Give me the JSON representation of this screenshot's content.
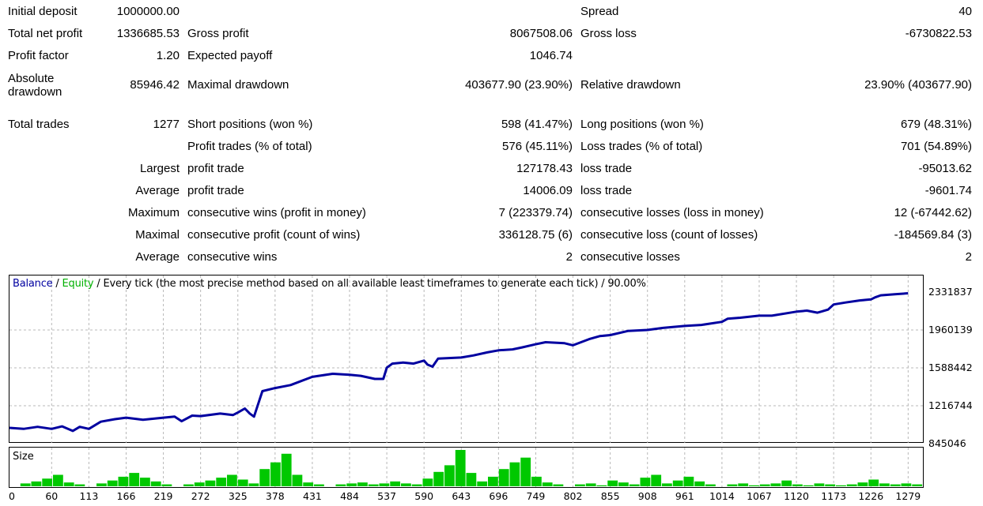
{
  "stats": {
    "initial_deposit_label": "Initial deposit",
    "initial_deposit": "1000000.00",
    "spread_label": "Spread",
    "spread": "40",
    "total_net_profit_label": "Total net profit",
    "total_net_profit": "1336685.53",
    "gross_profit_label": "Gross profit",
    "gross_profit": "8067508.06",
    "gross_loss_label": "Gross loss",
    "gross_loss": "-6730822.53",
    "profit_factor_label": "Profit factor",
    "profit_factor": "1.20",
    "expected_payoff_label": "Expected payoff",
    "expected_payoff": "1046.74",
    "absolute_drawdown_label": "Absolute drawdown",
    "absolute_drawdown": "85946.42",
    "maximal_drawdown_label": "Maximal drawdown",
    "maximal_drawdown": "403677.90 (23.90%)",
    "relative_drawdown_label": "Relative drawdown",
    "relative_drawdown": "23.90% (403677.90)",
    "total_trades_label": "Total trades",
    "total_trades": "1277",
    "short_positions_label": "Short positions (won %)",
    "short_positions": "598 (41.47%)",
    "long_positions_label": "Long positions (won %)",
    "long_positions": "679 (48.31%)",
    "profit_trades_label": "Profit trades (% of total)",
    "profit_trades": "576 (45.11%)",
    "loss_trades_label": "Loss trades (% of total)",
    "loss_trades": "701 (54.89%)",
    "largest_label": "Largest",
    "largest_profit_label": "profit trade",
    "largest_profit": "127178.43",
    "largest_loss_label": "loss trade",
    "largest_loss": "-95013.62",
    "average_label": "Average",
    "average_profit_label": "profit trade",
    "average_profit": "14006.09",
    "average_loss_label": "loss trade",
    "average_loss": "-9601.74",
    "maximum_label": "Maximum",
    "max_consec_wins_label": "consecutive wins (profit in money)",
    "max_consec_wins": "7 (223379.74)",
    "max_consec_losses_label": "consecutive losses (loss in money)",
    "max_consec_losses": "12 (-67442.62)",
    "maximal_label": "Maximal",
    "maximal_consec_profit_label": "consecutive profit (count of wins)",
    "maximal_consec_profit": "336128.75 (6)",
    "maximal_consec_loss_label": "consecutive loss (count of losses)",
    "maximal_consec_loss": "-184569.84 (3)",
    "average2_label": "Average",
    "avg_consec_wins_label": "consecutive wins",
    "avg_consec_wins": "2",
    "avg_consec_losses_label": "consecutive losses",
    "avg_consec_losses": "2"
  },
  "chart_data": [
    {
      "type": "line",
      "legend": {
        "balance": "Balance",
        "sep1": " / ",
        "equity": "Equity",
        "sep2": " / ",
        "description": "Every tick (the most precise method based on all available least timeframes to generate each tick) / 90.00%"
      },
      "colors": {
        "balance": "#0000a0",
        "equity": "#00b000",
        "size": "#00c800"
      },
      "ylim": [
        845046,
        2331837
      ],
      "y_ticks": [
        2331837,
        1960139,
        1588442,
        1216744,
        845046
      ],
      "x_ticks": [
        0,
        60,
        113,
        166,
        219,
        272,
        325,
        378,
        431,
        484,
        537,
        590,
        643,
        696,
        749,
        802,
        855,
        908,
        961,
        1014,
        1067,
        1120,
        1173,
        1226,
        1279
      ],
      "series": [
        {
          "name": "Balance",
          "x": [
            0,
            20,
            40,
            60,
            75,
            90,
            100,
            113,
            130,
            150,
            166,
            190,
            219,
            235,
            245,
            260,
            272,
            300,
            318,
            325,
            335,
            342,
            348,
            360,
            378,
            400,
            431,
            460,
            484,
            500,
            520,
            532,
            537,
            545,
            560,
            575,
            590,
            595,
            602,
            610,
            643,
            660,
            680,
            696,
            716,
            730,
            749,
            763,
            790,
            802,
            825,
            840,
            855,
            880,
            908,
            930,
            961,
            985,
            1014,
            1022,
            1040,
            1067,
            1085,
            1120,
            1135,
            1150,
            1155,
            1165,
            1173,
            1190,
            1210,
            1226,
            1232,
            1240,
            1260,
            1279
          ],
          "y": [
            1000000,
            990000,
            1010000,
            990000,
            1015000,
            970000,
            1010000,
            990000,
            1060000,
            1085000,
            1100000,
            1080000,
            1100000,
            1110000,
            1065000,
            1120000,
            1115000,
            1140000,
            1125000,
            1150000,
            1190000,
            1140000,
            1110000,
            1360000,
            1390000,
            1420000,
            1500000,
            1530000,
            1520000,
            1510000,
            1480000,
            1480000,
            1590000,
            1630000,
            1640000,
            1630000,
            1660000,
            1620000,
            1600000,
            1680000,
            1690000,
            1710000,
            1740000,
            1760000,
            1770000,
            1790000,
            1820000,
            1840000,
            1830000,
            1810000,
            1870000,
            1900000,
            1910000,
            1950000,
            1960000,
            1980000,
            2000000,
            2010000,
            2040000,
            2070000,
            2080000,
            2100000,
            2100000,
            2140000,
            2150000,
            2130000,
            2140000,
            2160000,
            2210000,
            2230000,
            2250000,
            2260000,
            2280000,
            2300000,
            2310000,
            2320000
          ]
        },
        {
          "name": "Size",
          "values": [
            0,
            3,
            5,
            8,
            12,
            4,
            2,
            0,
            3,
            6,
            10,
            14,
            9,
            5,
            2,
            0,
            2,
            4,
            6,
            9,
            12,
            7,
            3,
            18,
            25,
            34,
            12,
            4,
            2,
            0,
            2,
            3,
            4,
            2,
            3,
            5,
            3,
            2,
            8,
            15,
            22,
            38,
            14,
            5,
            10,
            18,
            25,
            30,
            10,
            4,
            2,
            0,
            2,
            3,
            1,
            6,
            4,
            2,
            9,
            12,
            3,
            6,
            10,
            5,
            2,
            0,
            2,
            3,
            1,
            2,
            3,
            6,
            2,
            1,
            3,
            2,
            1,
            2,
            4,
            7,
            3,
            2,
            3,
            2
          ]
        }
      ]
    }
  ],
  "sub_chart": {
    "label": "Size"
  }
}
